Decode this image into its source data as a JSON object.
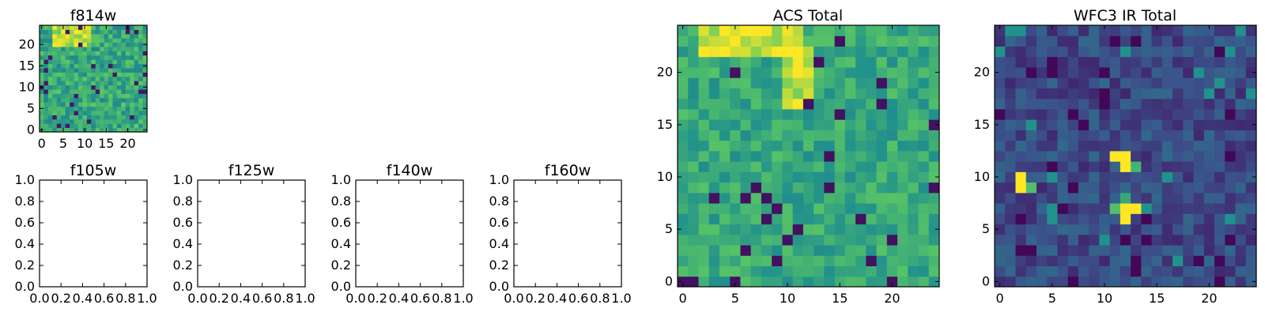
{
  "chart_data": [
    {
      "type": "heatmap",
      "title": "f814w",
      "xlim": [
        0,
        25
      ],
      "ylim": [
        0,
        25
      ],
      "xticks": [
        "0",
        "5",
        "10",
        "15",
        "20"
      ],
      "yticks": [
        "0",
        "5",
        "10",
        "15",
        "20"
      ],
      "grid": false,
      "note": "25x25 pixel image, viridis colormap; bright region upper-left"
    },
    {
      "type": "empty",
      "title": "f105w",
      "xlim": [
        0.0,
        1.0
      ],
      "ylim": [
        0.0,
        1.0
      ],
      "xticks": [
        "0.0",
        "0.2",
        "0.4",
        "0.6",
        "0.8",
        "1.0"
      ],
      "yticks": [
        "0.0",
        "0.2",
        "0.4",
        "0.6",
        "0.8",
        "1.0"
      ]
    },
    {
      "type": "empty",
      "title": "f125w",
      "xlim": [
        0.0,
        1.0
      ],
      "ylim": [
        0.0,
        1.0
      ],
      "xticks": [
        "0.0",
        "0.2",
        "0.4",
        "0.6",
        "0.8",
        "1.0"
      ],
      "yticks": [
        "0.0",
        "0.2",
        "0.4",
        "0.6",
        "0.8",
        "1.0"
      ]
    },
    {
      "type": "empty",
      "title": "f140w",
      "xlim": [
        0.0,
        1.0
      ],
      "ylim": [
        0.0,
        1.0
      ],
      "xticks": [
        "0.0",
        "0.2",
        "0.4",
        "0.6",
        "0.8",
        "1.0"
      ],
      "yticks": [
        "0.0",
        "0.2",
        "0.4",
        "0.6",
        "0.8",
        "1.0"
      ]
    },
    {
      "type": "empty",
      "title": "f160w",
      "xlim": [
        0.0,
        1.0
      ],
      "ylim": [
        0.0,
        1.0
      ],
      "xticks": [
        "0.0",
        "0.2",
        "0.4",
        "0.6",
        "0.8",
        "1.0"
      ],
      "yticks": [
        "0.0",
        "0.2",
        "0.4",
        "0.6",
        "0.8",
        "1.0"
      ]
    },
    {
      "type": "heatmap",
      "title": "ACS Total",
      "xlim": [
        0,
        25
      ],
      "ylim": [
        0,
        25
      ],
      "xticks": [
        "0",
        "5",
        "10",
        "15",
        "20"
      ],
      "yticks": [
        "0",
        "5",
        "10",
        "15",
        "20"
      ],
      "grid": false,
      "note": "25x25 pixel image, viridis colormap; bright band across top, bright pixels near top center"
    },
    {
      "type": "heatmap",
      "title": "WFC3 IR Total",
      "xlim": [
        0,
        25
      ],
      "ylim": [
        0,
        25
      ],
      "xticks": [
        "0",
        "5",
        "10",
        "15",
        "20"
      ],
      "yticks": [
        "0",
        "5",
        "10",
        "15",
        "20"
      ],
      "grid": false,
      "note": "25x25 pixel image, viridis colormap; mostly dark with bright sources near (2,9), (12,12), (12,6)"
    }
  ],
  "colormap": [
    "#440154",
    "#3b528b",
    "#21918c",
    "#5ec962",
    "#fde725"
  ]
}
